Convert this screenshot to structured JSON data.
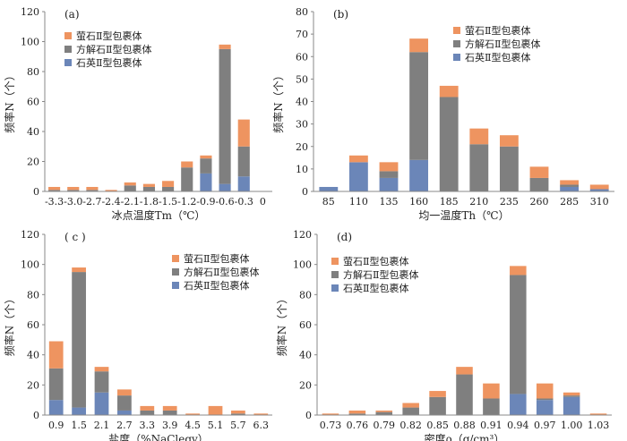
{
  "colors": {
    "quartz": "#6b86b8",
    "calcite": "#7f7f7f",
    "fluorite": "#ee9460",
    "axis": "#888888",
    "text": "#222222"
  },
  "chart_data": [
    {
      "panel": "(a)",
      "type": "bar",
      "stacked": true,
      "title": "",
      "xlabel": "冰点温度Tm（℃）",
      "ylabel": "频率N（个）",
      "ylim": [
        0,
        120
      ],
      "yticks": [
        0,
        20,
        40,
        60,
        80,
        100,
        120
      ],
      "categories": [
        "-3.3",
        "-3.0",
        "-2.7",
        "-2.4",
        "-2.1",
        "-1.8",
        "-1.5",
        "-1.2",
        "-0.9",
        "-0.6",
        "-0.3",
        "0"
      ],
      "legend_position": "top-left",
      "series": [
        {
          "name": "石英Ⅱ型包裹体",
          "key": "quartz",
          "values": [
            0,
            0,
            0,
            0,
            0,
            0,
            0,
            0,
            12,
            5,
            10,
            0
          ]
        },
        {
          "name": "方解石Ⅱ型包裹体",
          "key": "calcite",
          "values": [
            1,
            1,
            1,
            0,
            4,
            3,
            3,
            16,
            10,
            90,
            20,
            0
          ]
        },
        {
          "name": "萤石Ⅱ型包裹体",
          "key": "fluorite",
          "values": [
            2,
            2,
            2,
            1,
            2,
            2,
            4,
            4,
            2,
            3,
            18,
            0
          ]
        }
      ]
    },
    {
      "panel": "(b)",
      "type": "bar",
      "stacked": true,
      "title": "",
      "xlabel": "均一温度Th（℃）",
      "ylabel": "频率N（个）",
      "ylim": [
        0,
        80
      ],
      "yticks": [
        0,
        10,
        20,
        30,
        40,
        50,
        60,
        70,
        80
      ],
      "categories": [
        "85",
        "110",
        "135",
        "160",
        "185",
        "210",
        "235",
        "260",
        "285",
        "310"
      ],
      "legend_position": "top-right",
      "series": [
        {
          "name": "石英Ⅱ型包裹体",
          "key": "quartz",
          "values": [
            2,
            13,
            6,
            14,
            0,
            0,
            0,
            0,
            2,
            1
          ]
        },
        {
          "name": "方解石Ⅱ型包裹体",
          "key": "calcite",
          "values": [
            0,
            0,
            3,
            48,
            42,
            21,
            20,
            6,
            1,
            0
          ]
        },
        {
          "name": "萤石Ⅱ型包裹体",
          "key": "fluorite",
          "values": [
            0,
            3,
            4,
            6,
            5,
            7,
            5,
            5,
            2,
            2
          ]
        }
      ]
    },
    {
      "panel": "( c )",
      "type": "bar",
      "stacked": true,
      "title": "",
      "xlabel": "盐度（%NaCleqv）",
      "ylabel": "频率N（个）",
      "ylim": [
        0,
        120
      ],
      "yticks": [
        0,
        20,
        40,
        60,
        80,
        100,
        120
      ],
      "categories": [
        "0.9",
        "1.5",
        "2.1",
        "2.7",
        "3.3",
        "3.9",
        "4.5",
        "5.1",
        "5.7",
        "6.3"
      ],
      "legend_position": "top-right",
      "series": [
        {
          "name": "石英Ⅱ型包裹体",
          "key": "quartz",
          "values": [
            10,
            5,
            15,
            3,
            0,
            0,
            0,
            0,
            0,
            0
          ]
        },
        {
          "name": "方解石Ⅱ型包裹体",
          "key": "calcite",
          "values": [
            21,
            90,
            14,
            10,
            3,
            3,
            0,
            0,
            1,
            0
          ]
        },
        {
          "name": "萤石Ⅱ型包裹体",
          "key": "fluorite",
          "values": [
            18,
            3,
            3,
            4,
            3,
            3,
            1,
            6,
            2,
            1
          ]
        }
      ]
    },
    {
      "panel": "(d)",
      "type": "bar",
      "stacked": true,
      "title": "",
      "xlabel": "密度ρ（g/cm³）",
      "ylabel": "频率N（个）",
      "ylim": [
        0,
        120
      ],
      "yticks": [
        0,
        20,
        40,
        60,
        80,
        100,
        120
      ],
      "categories": [
        "0.73",
        "0.76",
        "0.79",
        "0.82",
        "0.85",
        "0.88",
        "0.91",
        "0.94",
        "0.97",
        "1.00",
        "1.03"
      ],
      "legend_position": "top-left",
      "series": [
        {
          "name": "石英Ⅱ型包裹体",
          "key": "quartz",
          "values": [
            0,
            0,
            0,
            0,
            0,
            0,
            0,
            14,
            10,
            12,
            0
          ]
        },
        {
          "name": "方解石Ⅱ型包裹体",
          "key": "calcite",
          "values": [
            0,
            1,
            2,
            5,
            12,
            27,
            11,
            79,
            1,
            1,
            0
          ]
        },
        {
          "name": "萤石Ⅱ型包裹体",
          "key": "fluorite",
          "values": [
            1,
            2,
            1,
            3,
            4,
            5,
            10,
            6,
            10,
            2,
            1
          ]
        }
      ]
    }
  ]
}
